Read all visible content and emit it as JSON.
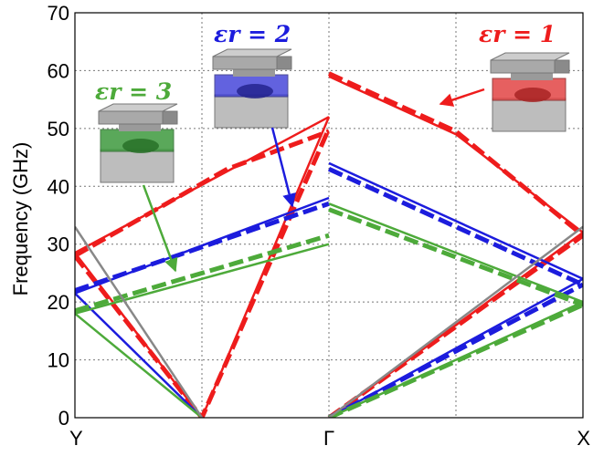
{
  "chart_data": {
    "type": "line",
    "ylabel": "Frequency (GHz)",
    "xlabel": "",
    "ylim": [
      0,
      70
    ],
    "yticks": [
      0,
      10,
      20,
      30,
      40,
      50,
      60,
      70
    ],
    "xtick_labels": [
      "Y",
      "Γ",
      "X"
    ],
    "grid": true,
    "annotations": [
      {
        "text": "εr = 1",
        "color": "#ee1c1c"
      },
      {
        "text": "εr = 2",
        "color": "#1c1cdd"
      },
      {
        "text": "εr = 3",
        "color": "#4daa3a"
      }
    ],
    "series": [
      {
        "color": "#ee1c1c",
        "style": "solid",
        "points": [
          [
            0,
            28.5
          ],
          [
            0.5,
            0
          ],
          [
            1,
            52
          ]
        ]
      },
      {
        "color": "#ee1c1c",
        "style": "solid",
        "points": [
          [
            0,
            28.5
          ],
          [
            1,
            52
          ]
        ]
      },
      {
        "color": "#ee1c1c",
        "style": "dashed",
        "points": [
          [
            0,
            28
          ],
          [
            0.5,
            0
          ],
          [
            1,
            50
          ]
        ]
      },
      {
        "color": "#ee1c1c",
        "style": "dashed",
        "points": [
          [
            0,
            28
          ],
          [
            0.6,
            43
          ],
          [
            1,
            49.5
          ]
        ]
      },
      {
        "color": "#ee1c1c",
        "style": "solid",
        "points": [
          [
            1,
            0
          ],
          [
            2,
            32
          ]
        ]
      },
      {
        "color": "#ee1c1c",
        "style": "dashed",
        "points": [
          [
            1,
            0
          ],
          [
            2,
            31.5
          ]
        ]
      },
      {
        "color": "#ee1c1c",
        "style": "solid",
        "points": [
          [
            1,
            59
          ],
          [
            1.5,
            49
          ],
          [
            2,
            32
          ]
        ]
      },
      {
        "color": "#ee1c1c",
        "style": "dashed",
        "points": [
          [
            1,
            59.5
          ],
          [
            1.5,
            49.5
          ],
          [
            2,
            31.5
          ]
        ]
      },
      {
        "color": "#1c1cdd",
        "style": "solid",
        "points": [
          [
            0,
            21.5
          ],
          [
            0.5,
            0
          ]
        ]
      },
      {
        "color": "#1c1cdd",
        "style": "solid",
        "points": [
          [
            0,
            21.5
          ],
          [
            1,
            38
          ]
        ]
      },
      {
        "color": "#1c1cdd",
        "style": "dashed",
        "points": [
          [
            0,
            22
          ],
          [
            1,
            37
          ]
        ]
      },
      {
        "color": "#1c1cdd",
        "style": "solid",
        "points": [
          [
            1,
            0
          ],
          [
            2,
            24
          ]
        ]
      },
      {
        "color": "#1c1cdd",
        "style": "dashed",
        "points": [
          [
            1,
            0
          ],
          [
            2,
            23
          ]
        ]
      },
      {
        "color": "#1c1cdd",
        "style": "solid",
        "points": [
          [
            1,
            44
          ],
          [
            2,
            24
          ]
        ]
      },
      {
        "color": "#1c1cdd",
        "style": "dashed",
        "points": [
          [
            1,
            43
          ],
          [
            2,
            23
          ]
        ]
      },
      {
        "color": "#4daa3a",
        "style": "solid",
        "points": [
          [
            0,
            18
          ],
          [
            0.5,
            0
          ]
        ]
      },
      {
        "color": "#4daa3a",
        "style": "solid",
        "points": [
          [
            0,
            18
          ],
          [
            1,
            30
          ]
        ]
      },
      {
        "color": "#4daa3a",
        "style": "dashed",
        "points": [
          [
            0,
            18.5
          ],
          [
            1,
            31.5
          ]
        ]
      },
      {
        "color": "#4daa3a",
        "style": "solid",
        "points": [
          [
            1,
            0
          ],
          [
            2,
            20
          ]
        ]
      },
      {
        "color": "#4daa3a",
        "style": "dashed",
        "points": [
          [
            1,
            0
          ],
          [
            2,
            19.5
          ]
        ]
      },
      {
        "color": "#4daa3a",
        "style": "solid",
        "points": [
          [
            1,
            37
          ],
          [
            2,
            20
          ]
        ]
      },
      {
        "color": "#4daa3a",
        "style": "dashed",
        "points": [
          [
            1,
            36
          ],
          [
            2,
            19.5
          ]
        ]
      },
      {
        "color": "#888888",
        "style": "solid",
        "points": [
          [
            0,
            33
          ],
          [
            0.5,
            0
          ]
        ]
      },
      {
        "color": "#888888",
        "style": "solid",
        "points": [
          [
            1,
            0
          ],
          [
            2,
            33
          ]
        ]
      }
    ]
  }
}
